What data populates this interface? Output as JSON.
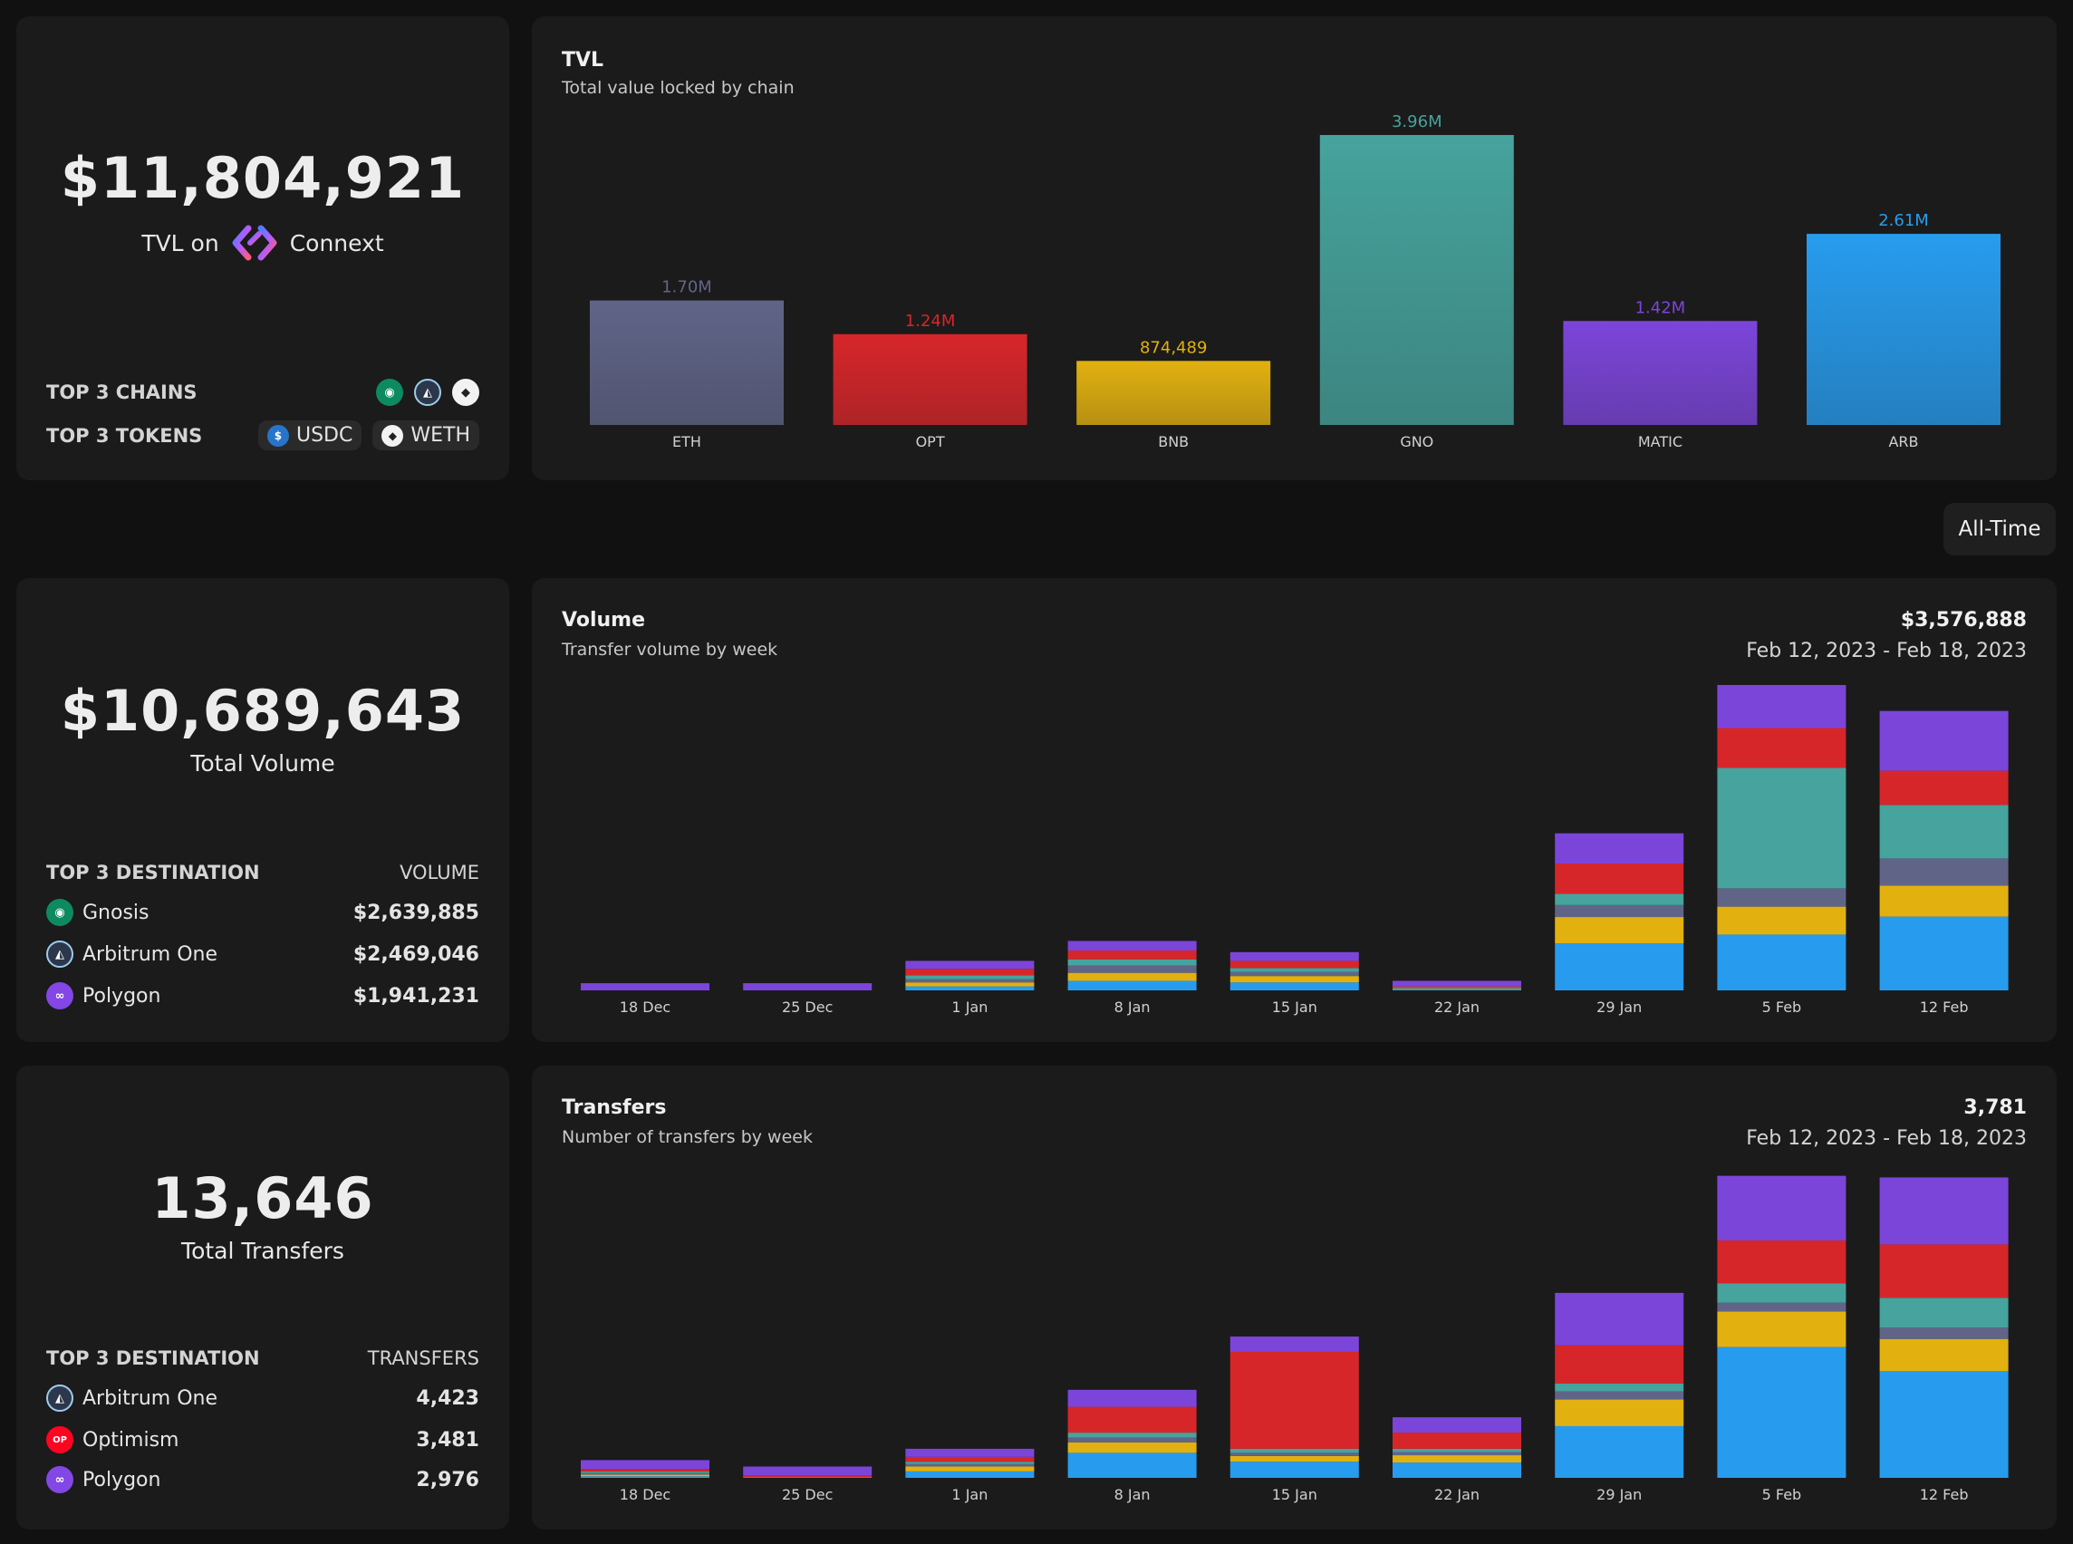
{
  "tvl_card": {
    "amount": "$11,804,921",
    "label_prefix": "TVL on",
    "brand": "Connext",
    "top_chains_label": "TOP 3 CHAINS",
    "top_tokens_label": "TOP 3 TOKENS",
    "top_chains": [
      "gnosis-icon",
      "arbitrum-icon",
      "ethereum-icon"
    ],
    "top_tokens": [
      {
        "symbol": "USDC"
      },
      {
        "symbol": "WETH"
      }
    ]
  },
  "volume_card": {
    "amount": "$10,689,643",
    "label": "Total Volume",
    "col1": "TOP 3 DESTINATION",
    "col2": "VOLUME",
    "rows": [
      {
        "name": "Gnosis",
        "value": "$2,639,885"
      },
      {
        "name": "Arbitrum One",
        "value": "$2,469,046"
      },
      {
        "name": "Polygon",
        "value": "$1,941,231"
      }
    ]
  },
  "transfers_card": {
    "amount": "13,646",
    "label": "Total Transfers",
    "col1": "TOP 3 DESTINATION",
    "col2": "TRANSFERS",
    "rows": [
      {
        "name": "Arbitrum One",
        "value": "4,423"
      },
      {
        "name": "Optimism",
        "value": "3,481"
      },
      {
        "name": "Polygon",
        "value": "2,976"
      }
    ]
  },
  "filter": {
    "label": "All-Time"
  },
  "colors": {
    "ETH": "#606588",
    "OPT": "#d7262a",
    "BNB": "#e2b110",
    "GNO": "#46a39d",
    "MATIC": "#7c45da",
    "ARB": "#279cee"
  },
  "chart_data": [
    {
      "type": "bar",
      "title": "TVL",
      "subtitle": "Total value locked by chain",
      "categories": [
        "ETH",
        "OPT",
        "BNB",
        "GNO",
        "MATIC",
        "ARB"
      ],
      "values": [
        1700000,
        1240000,
        874489,
        3960000,
        1420000,
        2610000
      ],
      "value_labels": [
        "1.70M",
        "1.24M",
        "874,489",
        "3.96M",
        "1.42M",
        "2.61M"
      ],
      "ylim": [
        0,
        3960000
      ]
    },
    {
      "type": "bar",
      "stacked": true,
      "title": "Volume",
      "subtitle": "Transfer volume by week",
      "total": "$3,576,888",
      "range": "Feb 12, 2023 - Feb 18, 2023",
      "categories": [
        "18 Dec",
        "25 Dec",
        "1 Jan",
        "8 Jan",
        "15 Jan",
        "22 Jan",
        "29 Jan",
        "5 Feb",
        "12 Feb"
      ],
      "ylim": [
        0,
        3830000
      ],
      "series": [
        {
          "name": "ARB",
          "values": [
            0,
            0,
            50000,
            120000,
            100000,
            10000,
            590000,
            700000,
            925000
          ]
        },
        {
          "name": "BNB",
          "values": [
            0,
            0,
            50000,
            100000,
            80000,
            10000,
            330000,
            350000,
            390000
          ]
        },
        {
          "name": "ETH",
          "values": [
            0,
            0,
            40000,
            90000,
            50000,
            10000,
            150000,
            230000,
            340000
          ]
        },
        {
          "name": "GNO",
          "values": [
            0,
            0,
            50000,
            80000,
            50000,
            10000,
            140000,
            1510000,
            670000
          ]
        },
        {
          "name": "OPT",
          "values": [
            0,
            0,
            80000,
            110000,
            90000,
            10000,
            380000,
            500000,
            430000
          ]
        },
        {
          "name": "MATIC",
          "values": [
            90000,
            90000,
            100000,
            120000,
            110000,
            70000,
            380000,
            540000,
            750000
          ]
        }
      ]
    },
    {
      "type": "bar",
      "stacked": true,
      "title": "Transfers",
      "subtitle": "Number of transfers by week",
      "total": "3,781",
      "range": "Feb 12, 2023 - Feb 18, 2023",
      "categories": [
        "18 Dec",
        "25 Dec",
        "1 Jan",
        "8 Jan",
        "15 Jan",
        "22 Jan",
        "29 Jan",
        "5 Feb",
        "12 Feb"
      ],
      "ylim": [
        0,
        3781
      ],
      "series": [
        {
          "name": "ARB",
          "values": [
            20,
            10,
            80,
            310,
            200,
            190,
            640,
            1620,
            1320
          ]
        },
        {
          "name": "BNB",
          "values": [
            20,
            0,
            60,
            130,
            70,
            90,
            330,
            440,
            400
          ]
        },
        {
          "name": "ETH",
          "values": [
            20,
            0,
            30,
            60,
            40,
            40,
            100,
            110,
            140
          ]
        },
        {
          "name": "GNO",
          "values": [
            20,
            0,
            30,
            60,
            50,
            40,
            100,
            240,
            370
          ]
        },
        {
          "name": "OPT",
          "values": [
            30,
            20,
            60,
            320,
            1200,
            200,
            470,
            530,
            660
          ]
        },
        {
          "name": "MATIC",
          "values": [
            110,
            110,
            100,
            210,
            190,
            190,
            650,
            800,
            830
          ]
        }
      ]
    }
  ]
}
